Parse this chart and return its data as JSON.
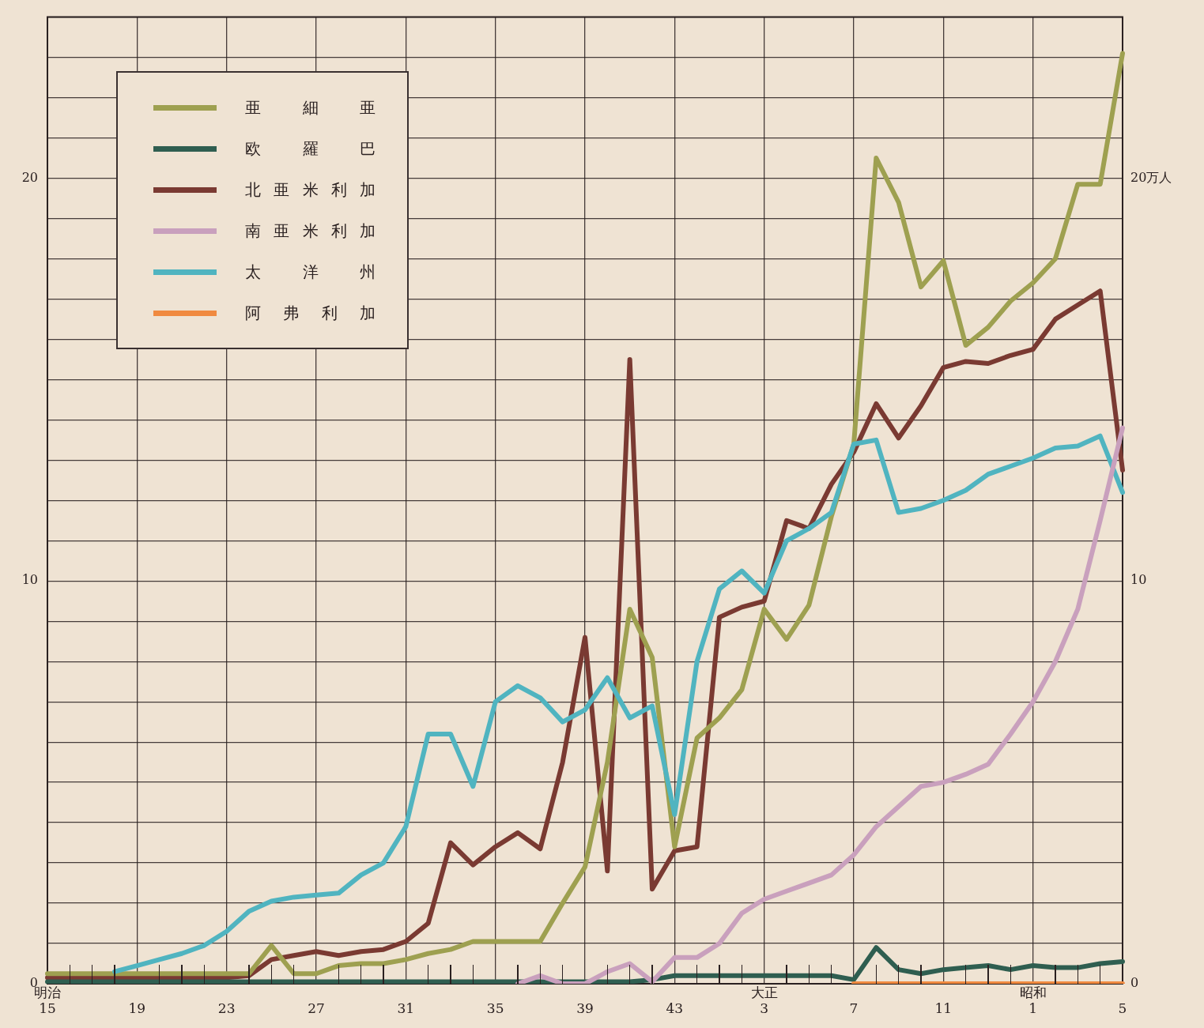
{
  "chart_data": {
    "type": "line",
    "legend": "top left",
    "grid": true,
    "marker": "none",
    "line_style": "solid",
    "categories": [
      "明治\n15",
      null,
      null,
      null,
      "19",
      null,
      null,
      null,
      "23",
      null,
      null,
      null,
      "27",
      null,
      null,
      null,
      "31",
      null,
      null,
      null,
      "35",
      null,
      null,
      null,
      "39",
      null,
      null,
      null,
      "43",
      null,
      null,
      null,
      "大正\n3",
      null,
      null,
      null,
      "7",
      null,
      null,
      null,
      "11",
      null,
      null,
      null,
      "昭和\n1",
      null,
      null,
      null,
      "5"
    ],
    "ylim": [
      0,
      24
    ],
    "yticks": [
      0,
      {
        "value": 1,
        "label": null
      },
      {
        "value": 2,
        "label": null
      },
      {
        "value": 3,
        "label": null
      },
      {
        "value": 4,
        "label": null
      },
      {
        "value": 5,
        "label": null
      },
      {
        "value": 6,
        "label": null
      },
      {
        "value": 7,
        "label": null
      },
      {
        "value": 8,
        "label": null
      },
      {
        "value": 9,
        "label": null
      },
      10,
      {
        "value": 11,
        "label": null
      },
      {
        "value": 12,
        "label": null
      },
      {
        "value": 13,
        "label": null
      },
      {
        "value": 14,
        "label": null
      },
      {
        "value": 15,
        "label": null
      },
      {
        "value": 16,
        "label": null
      },
      {
        "value": 17,
        "label": null
      },
      {
        "value": 18,
        "label": null
      },
      {
        "value": 19,
        "label": null
      },
      20,
      {
        "value": 21,
        "label": null
      },
      {
        "value": 22,
        "label": null
      },
      {
        "value": 23,
        "label": null
      },
      {
        "value": 24,
        "label": null
      }
    ],
    "y2lim": [
      0,
      24
    ],
    "y2ticks": [
      0,
      10,
      {
        "value": 20,
        "label": "20万人"
      }
    ],
    "series": [
      {
        "name": "亜細亜",
        "color": "#9ea050",
        "values": [
          0.25,
          0.25,
          0.25,
          0.25,
          0.25,
          0.25,
          0.25,
          0.25,
          0.25,
          0.25,
          0.95,
          0.25,
          0.25,
          0.45,
          0.5,
          0.5,
          0.6,
          0.75,
          0.85,
          1.05,
          1.05,
          1.05,
          1.05,
          2.0,
          2.9,
          5.5,
          9.3,
          8.1,
          3.4,
          6.1,
          6.6,
          7.3,
          9.3,
          8.55,
          9.4,
          11.6,
          13.4,
          20.5,
          19.4,
          17.3,
          17.95,
          15.85,
          16.3,
          16.95,
          17.4,
          18.0,
          19.85,
          19.85,
          23.1
        ]
      },
      {
        "name": "欧羅巴",
        "color": "#2f5e50",
        "values": [
          0.05,
          0.05,
          0.05,
          0.05,
          0.05,
          0.05,
          0.05,
          0.05,
          0.05,
          0.05,
          0.05,
          0.05,
          0.05,
          0.05,
          0.05,
          0.05,
          0.05,
          0.05,
          0.05,
          0.05,
          0.05,
          0.05,
          0.05,
          0.05,
          0.05,
          0.05,
          0.05,
          0.1,
          0.2,
          0.2,
          0.2,
          0.2,
          0.2,
          0.2,
          0.2,
          0.2,
          0.1,
          0.9,
          0.35,
          0.25,
          0.35,
          0.4,
          0.45,
          0.35,
          0.45,
          0.4,
          0.4,
          0.5,
          0.55
        ]
      },
      {
        "name": "北亜米利加",
        "color": "#7a3a32",
        "values": [
          0.15,
          0.15,
          0.15,
          0.15,
          0.15,
          0.15,
          0.15,
          0.15,
          0.15,
          0.2,
          0.6,
          0.7,
          0.8,
          0.7,
          0.8,
          0.85,
          1.05,
          1.5,
          3.5,
          2.95,
          3.4,
          3.75,
          3.35,
          5.5,
          8.6,
          2.8,
          15.5,
          2.35,
          3.3,
          3.4,
          9.1,
          9.35,
          9.5,
          11.5,
          11.3,
          12.4,
          13.2,
          14.4,
          13.55,
          14.35,
          15.3,
          15.45,
          15.4,
          15.6,
          15.75,
          16.5,
          16.85,
          17.2,
          12.75
        ]
      },
      {
        "name": "南亜米利加",
        "color": "#c9a0bd",
        "values": [
          null,
          null,
          null,
          null,
          null,
          null,
          null,
          null,
          null,
          null,
          null,
          null,
          null,
          null,
          null,
          null,
          null,
          null,
          null,
          null,
          null,
          0,
          0.2,
          0,
          0,
          0.3,
          0.5,
          0.05,
          0.65,
          0.65,
          1.0,
          1.75,
          2.1,
          2.3,
          2.5,
          2.7,
          3.2,
          3.9,
          4.4,
          4.9,
          5.0,
          5.2,
          5.45,
          6.2,
          7.0,
          8.0,
          9.3,
          11.5,
          13.8
        ]
      },
      {
        "name": "太洋州",
        "color": "#50b4c0",
        "values": [
          null,
          null,
          null,
          0.3,
          0.45,
          0.6,
          0.75,
          0.95,
          1.3,
          1.8,
          2.05,
          2.15,
          2.2,
          2.25,
          2.7,
          3.0,
          3.9,
          6.2,
          6.2,
          4.9,
          7.0,
          7.4,
          7.1,
          6.5,
          6.8,
          7.6,
          6.6,
          6.9,
          4.2,
          8.0,
          9.8,
          10.25,
          9.7,
          11.0,
          11.3,
          11.7,
          13.4,
          13.5,
          11.7,
          11.8,
          12.0,
          12.25,
          12.65,
          12.85,
          13.05,
          13.3,
          13.35,
          13.6,
          12.2
        ]
      },
      {
        "name": "阿弗利加",
        "color": "#f08a40",
        "values": [
          null,
          null,
          null,
          null,
          null,
          null,
          null,
          null,
          null,
          null,
          null,
          null,
          null,
          null,
          null,
          null,
          null,
          null,
          null,
          null,
          null,
          null,
          null,
          null,
          null,
          null,
          null,
          null,
          null,
          null,
          null,
          null,
          null,
          null,
          null,
          null,
          0,
          0,
          0,
          0,
          0,
          0,
          0,
          0,
          0,
          0,
          0,
          0,
          0
        ]
      }
    ]
  }
}
